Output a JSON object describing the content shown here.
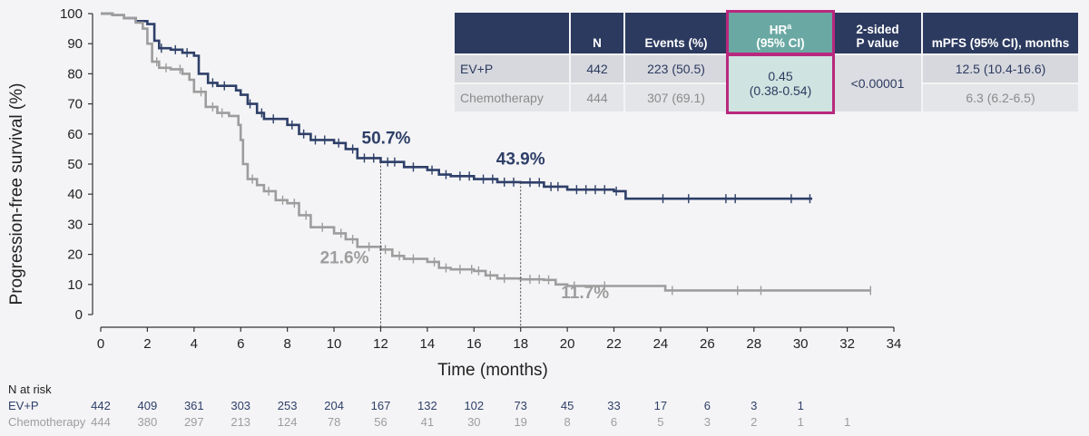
{
  "chart_data": {
    "type": "line",
    "ylabel": "Progression-free survival (%)",
    "xlabel": "Time (months)",
    "xlim": [
      0,
      34
    ],
    "ylim": [
      0,
      100
    ],
    "xticks": [
      0,
      2,
      4,
      6,
      8,
      10,
      12,
      14,
      16,
      18,
      20,
      22,
      24,
      26,
      28,
      30,
      32,
      34
    ],
    "yticks": [
      0,
      10,
      20,
      30,
      40,
      50,
      60,
      70,
      80,
      90,
      100
    ],
    "grid": false,
    "series": [
      {
        "name": "EV+P",
        "color": "#2e3f68",
        "points": [
          [
            0,
            100
          ],
          [
            0.5,
            99.5
          ],
          [
            1.0,
            98.5
          ],
          [
            1.5,
            97.5
          ],
          [
            2.0,
            96.5
          ],
          [
            2.3,
            91
          ],
          [
            2.5,
            88.5
          ],
          [
            3.0,
            88
          ],
          [
            3.5,
            87
          ],
          [
            4.0,
            86
          ],
          [
            4.2,
            80
          ],
          [
            4.6,
            77
          ],
          [
            5.0,
            76
          ],
          [
            5.8,
            74.5
          ],
          [
            6.0,
            73
          ],
          [
            6.3,
            70
          ],
          [
            6.7,
            67
          ],
          [
            7.0,
            65
          ],
          [
            8.0,
            63
          ],
          [
            8.5,
            60
          ],
          [
            9.0,
            58
          ],
          [
            10.0,
            57
          ],
          [
            10.5,
            55
          ],
          [
            11.0,
            52
          ],
          [
            12.0,
            50.7
          ],
          [
            13.0,
            49
          ],
          [
            14.0,
            48
          ],
          [
            14.5,
            46.5
          ],
          [
            15.0,
            46
          ],
          [
            16.0,
            45
          ],
          [
            17.0,
            44
          ],
          [
            18.0,
            43.9
          ],
          [
            19.0,
            42.5
          ],
          [
            20.0,
            41.5
          ],
          [
            21.0,
            41.5
          ],
          [
            22.0,
            41
          ],
          [
            22.5,
            38.5
          ],
          [
            25.0,
            38.5
          ],
          [
            28.0,
            38.5
          ],
          [
            30.5,
            38.5
          ]
        ],
        "censor_x": [
          2.6,
          3.2,
          3.7,
          4.8,
          5.3,
          6.4,
          6.9,
          7.4,
          8.2,
          8.7,
          9.2,
          9.6,
          10.2,
          10.8,
          11.3,
          11.7,
          12.3,
          12.6,
          13.4,
          14.2,
          14.8,
          15.4,
          15.8,
          16.4,
          16.8,
          17.3,
          17.7,
          18.4,
          18.8,
          19.3,
          19.6,
          20.4,
          20.8,
          21.2,
          21.6,
          22.1,
          24.1,
          25.2,
          26.8,
          27.2,
          29.6,
          30.4
        ],
        "landmarks": [
          {
            "x": 12,
            "y": 50.7,
            "label": "50.7%"
          },
          {
            "x": 18,
            "y": 43.9,
            "label": "43.9%"
          }
        ]
      },
      {
        "name": "Chemotherapy",
        "color": "#9d9d9d",
        "points": [
          [
            0,
            100
          ],
          [
            0.5,
            99.5
          ],
          [
            1.0,
            98.5
          ],
          [
            1.5,
            97
          ],
          [
            1.8,
            95
          ],
          [
            2.0,
            90
          ],
          [
            2.2,
            84
          ],
          [
            2.5,
            82
          ],
          [
            3.0,
            81.5
          ],
          [
            3.5,
            80
          ],
          [
            3.8,
            78
          ],
          [
            4.0,
            74
          ],
          [
            4.5,
            69
          ],
          [
            5.0,
            67
          ],
          [
            5.5,
            66
          ],
          [
            5.9,
            63
          ],
          [
            6.0,
            58
          ],
          [
            6.1,
            50
          ],
          [
            6.3,
            45
          ],
          [
            6.7,
            43
          ],
          [
            7.0,
            41
          ],
          [
            7.5,
            38
          ],
          [
            8.0,
            37
          ],
          [
            8.5,
            33
          ],
          [
            9.0,
            29
          ],
          [
            10.0,
            27
          ],
          [
            10.5,
            25
          ],
          [
            11.0,
            22.5
          ],
          [
            12.0,
            21.6
          ],
          [
            12.5,
            19.5
          ],
          [
            13.0,
            18.5
          ],
          [
            14.0,
            17.5
          ],
          [
            14.5,
            15.5
          ],
          [
            15.0,
            15
          ],
          [
            16.0,
            14.5
          ],
          [
            16.5,
            13
          ],
          [
            17.0,
            12
          ],
          [
            18.0,
            11.7
          ],
          [
            19.0,
            11.5
          ],
          [
            19.5,
            10
          ],
          [
            20.0,
            9.5
          ],
          [
            24.0,
            9.5
          ],
          [
            24.2,
            8
          ],
          [
            28.0,
            8
          ],
          [
            33.0,
            8
          ]
        ],
        "censor_x": [
          2.4,
          2.8,
          3.4,
          4.3,
          4.8,
          5.2,
          6.5,
          7.2,
          7.8,
          8.3,
          8.8,
          9.5,
          10.3,
          10.8,
          11.5,
          12.2,
          12.8,
          13.4,
          14.3,
          14.8,
          15.4,
          15.9,
          16.2,
          16.7,
          17.3,
          18.4,
          18.8,
          19.2,
          20.3,
          21.6,
          24.5,
          27.3,
          28.3,
          33.0
        ],
        "landmarks": [
          {
            "x": 12,
            "y": 21.6,
            "label": "21.6%"
          },
          {
            "x": 18,
            "y": 11.7,
            "label": "11.7%"
          }
        ]
      }
    ]
  },
  "table": {
    "headers": [
      "",
      "N",
      "Events (%)",
      "HRᵃ (95% CI)",
      "2-sided P value",
      "mPFS (95% CI), months"
    ],
    "hr_label": "HR",
    "hr_sup": "a",
    "hr_ci": "(95% CI)",
    "p_line1": "2-sided",
    "p_line2": "P value",
    "rows": [
      {
        "label": "EV+P",
        "n": "442",
        "events": "223 (50.5)",
        "mpfs": "12.5 (10.4-16.6)"
      },
      {
        "label": "Chemotherapy",
        "n": "444",
        "events": "307 (69.1)",
        "mpfs": "6.3 (6.2-6.5)"
      }
    ],
    "hr_value": "0.45",
    "hr_ci_value": "(0.38-0.54)",
    "p_value": "<0.00001"
  },
  "risk_table": {
    "title": "N at risk",
    "times": [
      0,
      2,
      4,
      6,
      8,
      10,
      12,
      14,
      16,
      18,
      20,
      22,
      24,
      26,
      28,
      30,
      32
    ],
    "rows": [
      {
        "label": "EV+P",
        "values": [
          "442",
          "409",
          "361",
          "303",
          "253",
          "204",
          "167",
          "132",
          "102",
          "73",
          "45",
          "33",
          "17",
          "6",
          "3",
          "1"
        ]
      },
      {
        "label": "Chemotherapy",
        "values": [
          "444",
          "380",
          "297",
          "213",
          "124",
          "78",
          "56",
          "41",
          "30",
          "19",
          "8",
          "6",
          "5",
          "3",
          "2",
          "1",
          "1"
        ]
      }
    ]
  }
}
